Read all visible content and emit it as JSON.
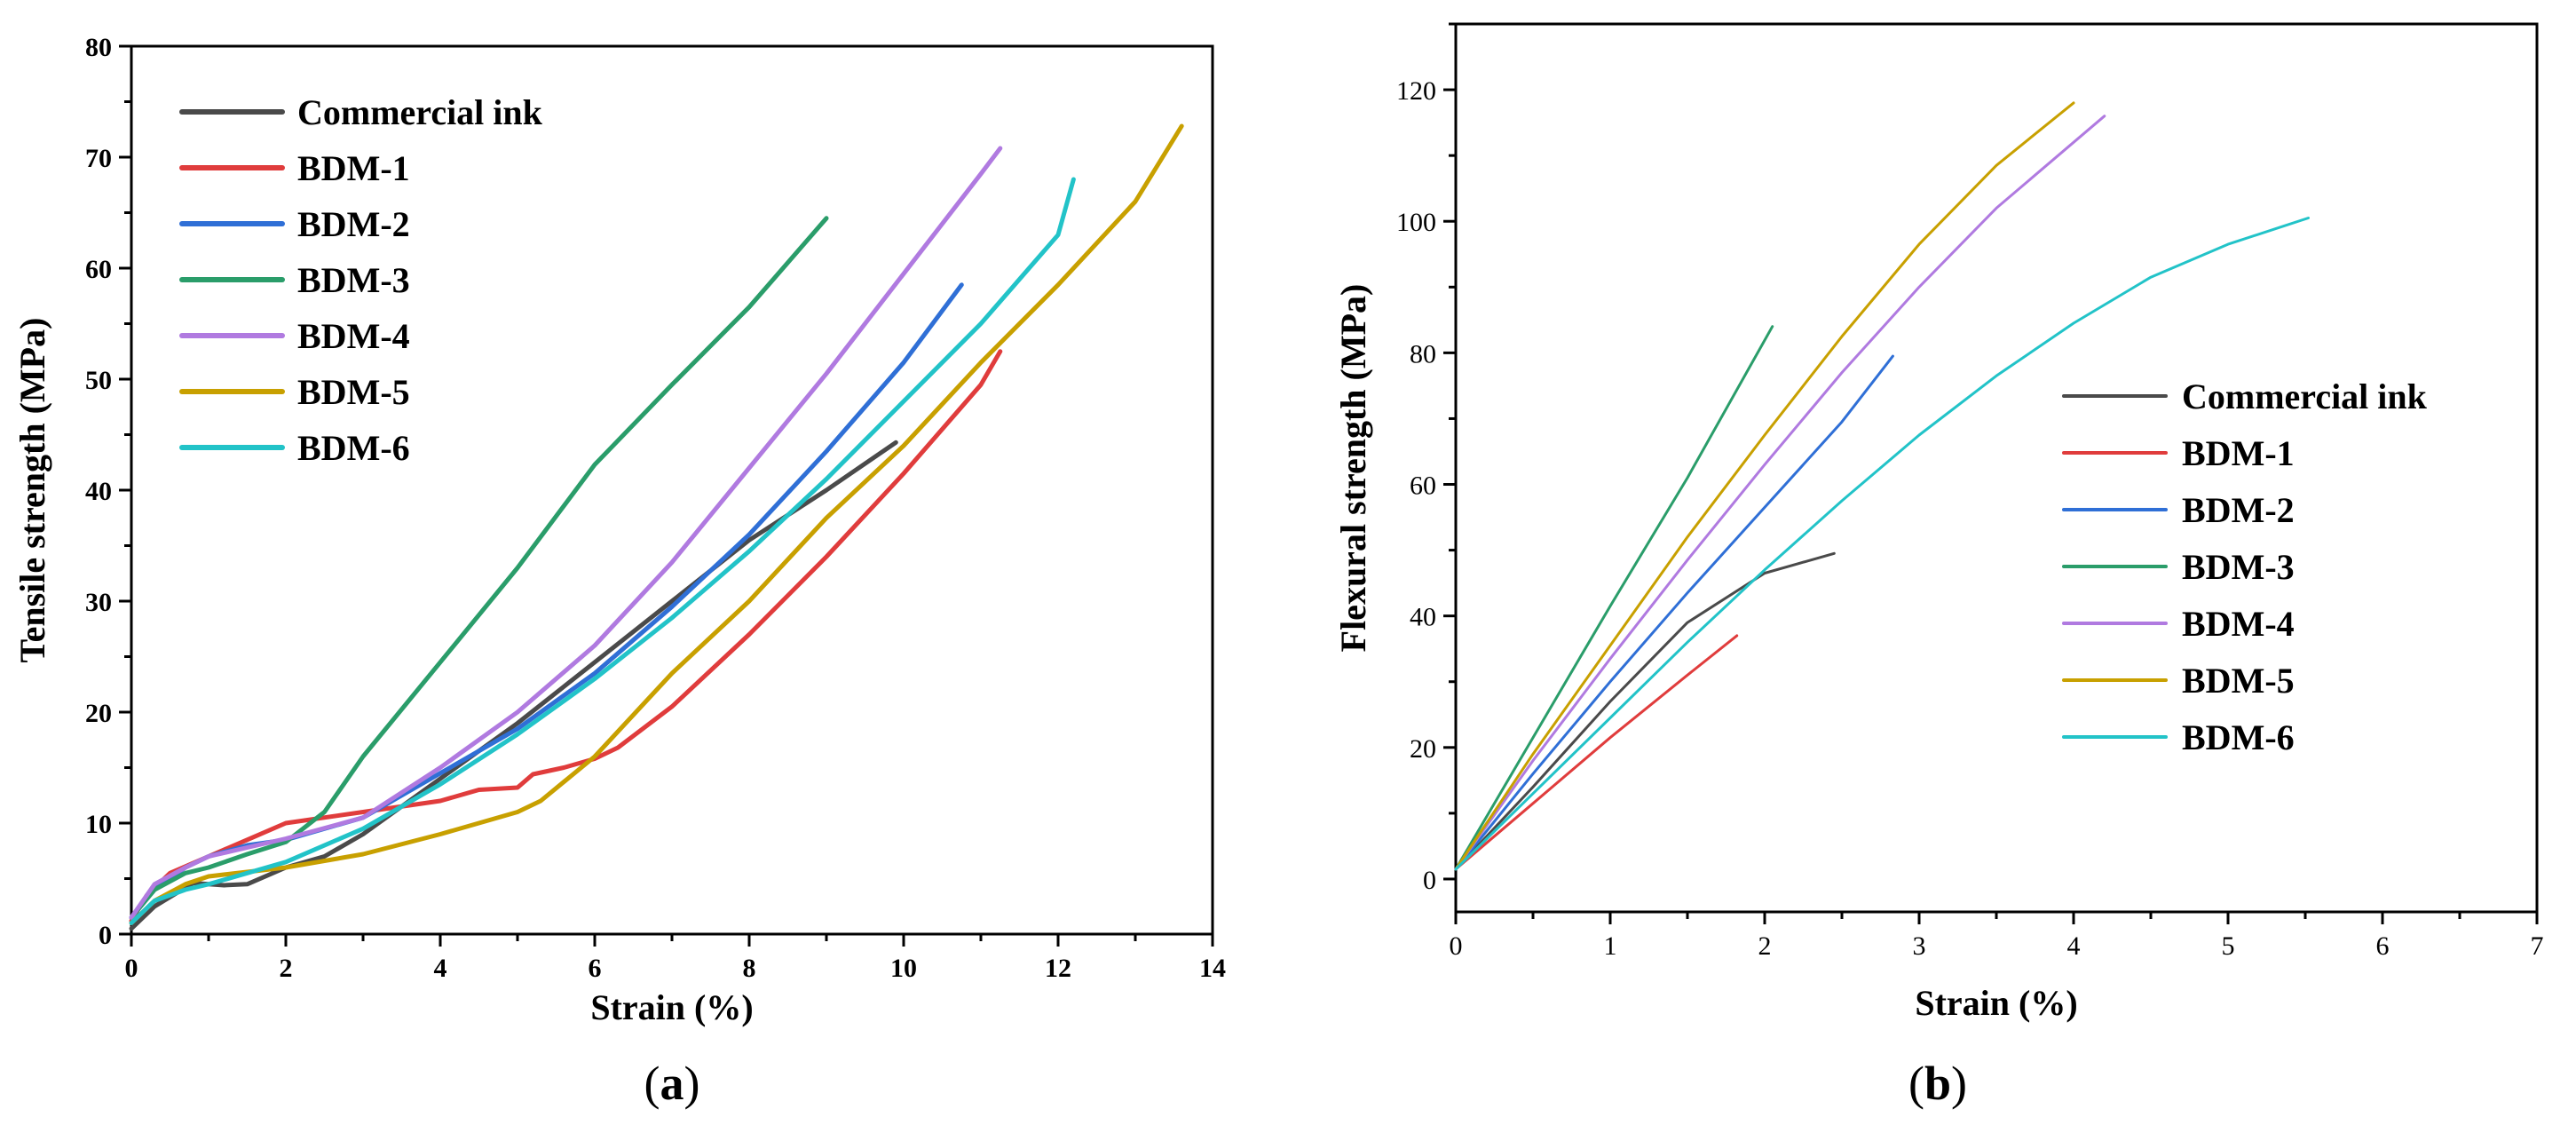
{
  "panels": [
    {
      "id": "a",
      "caption_letter": "a",
      "chart_data": {
        "type": "line",
        "xlabel": "Strain (%)",
        "ylabel": "Tensile strength (MPa)",
        "xlim": [
          0,
          14
        ],
        "ylim": [
          0,
          80
        ],
        "xticks": [
          0,
          2,
          4,
          6,
          8,
          10,
          12,
          14
        ],
        "yticks": [
          0,
          10,
          20,
          30,
          40,
          50,
          60,
          70,
          80
        ],
        "legend_position": "top-left",
        "series": [
          {
            "name": "Commercial ink",
            "color": "#4a4a4a",
            "x": [
              0,
              0.3,
              0.8,
              1.2,
              1.5,
              2,
              2.5,
              3,
              4,
              5,
              6,
              7,
              8,
              9,
              9.9
            ],
            "y": [
              0.5,
              2.5,
              4.6,
              4.4,
              4.5,
              6,
              7,
              9,
              14,
              19,
              24.5,
              30,
              35.5,
              40,
              44.3
            ]
          },
          {
            "name": "BDM-1",
            "color": "#e03c3c",
            "x": [
              0,
              0.2,
              0.5,
              1,
              1.5,
              2,
              3,
              4,
              4.5,
              5,
              5.2,
              5.6,
              6,
              6.3,
              7,
              8,
              9,
              10,
              11,
              11.25
            ],
            "y": [
              1.2,
              3.5,
              5.5,
              7,
              8.5,
              10,
              11,
              12,
              13,
              13.2,
              14.4,
              15,
              15.8,
              16.8,
              20.5,
              27,
              34,
              41.5,
              49.5,
              52.5
            ]
          },
          {
            "name": "BDM-2",
            "color": "#2f6fd6",
            "x": [
              0,
              0.3,
              0.7,
              1,
              1.5,
              2,
              3,
              4,
              5,
              6,
              7,
              8,
              9,
              10,
              10.75
            ],
            "y": [
              1.5,
              4,
              6,
              7,
              8,
              8.5,
              10.5,
              14.5,
              18.5,
              23.5,
              29.5,
              36,
              43.5,
              51.5,
              58.5
            ]
          },
          {
            "name": "BDM-3",
            "color": "#2a9d6a",
            "x": [
              0,
              0.3,
              0.7,
              1,
              1.5,
              2,
              2.5,
              3,
              4,
              5,
              6,
              7,
              8,
              9
            ],
            "y": [
              1.5,
              4,
              5.5,
              6,
              7.2,
              8.3,
              11,
              16,
              24.5,
              33,
              42.3,
              49.5,
              56.5,
              64.5
            ]
          },
          {
            "name": "BDM-4",
            "color": "#b07ae0",
            "x": [
              0,
              0.3,
              0.7,
              1,
              1.5,
              2,
              3,
              4,
              5,
              6,
              7,
              8,
              9,
              10,
              11,
              11.25
            ],
            "y": [
              1.5,
              4.5,
              6,
              7,
              7.8,
              8.6,
              10.5,
              15,
              20,
              26,
              33.5,
              42,
              50.5,
              59.5,
              68.5,
              70.8
            ]
          },
          {
            "name": "BDM-5",
            "color": "#c8a000",
            "x": [
              0,
              0.3,
              0.7,
              1,
              2,
              3,
              4,
              5,
              5.3,
              6,
              7,
              8,
              9,
              10,
              11,
              12,
              13,
              13.6
            ],
            "y": [
              1,
              3,
              4.5,
              5.2,
              6,
              7.2,
              9,
              11,
              12,
              16,
              23.5,
              30,
              37.5,
              44,
              51.5,
              58.5,
              66,
              72.8
            ]
          },
          {
            "name": "BDM-6",
            "color": "#22c3c8",
            "x": [
              0,
              0.3,
              0.7,
              1,
              1.5,
              2,
              3,
              4,
              5,
              6,
              7,
              8,
              9,
              10,
              11,
              12,
              12.2
            ],
            "y": [
              1,
              3,
              4,
              4.5,
              5.5,
              6.5,
              9.5,
              13.5,
              18,
              23,
              28.5,
              34.5,
              41,
              48,
              55,
              63,
              68
            ]
          }
        ]
      }
    },
    {
      "id": "b",
      "caption_letter": "b",
      "chart_data": {
        "type": "line",
        "xlabel": "Strain (%)",
        "ylabel": "Flexural strength (MPa)",
        "xlim": [
          0,
          7
        ],
        "ylim": [
          -5,
          130
        ],
        "xticks": [
          0,
          1,
          2,
          3,
          4,
          5,
          6,
          7
        ],
        "yticks": [
          0,
          20,
          40,
          60,
          80,
          100,
          120
        ],
        "legend_position": "right-middle",
        "series": [
          {
            "name": "Commercial ink",
            "color": "#4a4a4a",
            "x": [
              0,
              0.5,
              1,
              1.5,
              2,
              2.45
            ],
            "y": [
              1.5,
              14,
              27,
              39,
              46.5,
              49.5
            ]
          },
          {
            "name": "BDM-1",
            "color": "#e03c3c",
            "x": [
              0,
              0.5,
              1,
              1.5,
              1.82
            ],
            "y": [
              1.5,
              11.5,
              21.5,
              31,
              37
            ]
          },
          {
            "name": "BDM-2",
            "color": "#2f6fd6",
            "x": [
              0,
              0.5,
              1,
              1.5,
              2,
              2.5,
              2.83
            ],
            "y": [
              1.5,
              16,
              30,
              43.5,
              56.5,
              69.5,
              79.5
            ]
          },
          {
            "name": "BDM-3",
            "color": "#2a9d6a",
            "x": [
              0,
              0.5,
              1,
              1.5,
              2.05
            ],
            "y": [
              1.5,
              21.5,
              41.5,
              61,
              84
            ]
          },
          {
            "name": "BDM-4",
            "color": "#b07ae0",
            "x": [
              0,
              0.5,
              1,
              1.5,
              2,
              2.5,
              3,
              3.5,
              4,
              4.2
            ],
            "y": [
              1.5,
              18,
              33.5,
              48.5,
              63,
              77,
              90,
              102,
              112,
              116
            ]
          },
          {
            "name": "BDM-5",
            "color": "#c8a000",
            "x": [
              0,
              0.5,
              1,
              1.5,
              2,
              2.5,
              3,
              3.5,
              4
            ],
            "y": [
              1.5,
              19,
              35.5,
              52,
              67.5,
              82.5,
              96.5,
              108.5,
              118
            ]
          },
          {
            "name": "BDM-6",
            "color": "#22c3c8",
            "x": [
              0,
              0.5,
              1,
              1.5,
              2,
              2.5,
              3,
              3.5,
              4,
              4.5,
              5,
              5.52
            ],
            "y": [
              1.5,
              13,
              24.5,
              36,
              47,
              57.5,
              67.5,
              76.5,
              84.5,
              91.5,
              96.5,
              100.5
            ]
          }
        ]
      }
    }
  ]
}
